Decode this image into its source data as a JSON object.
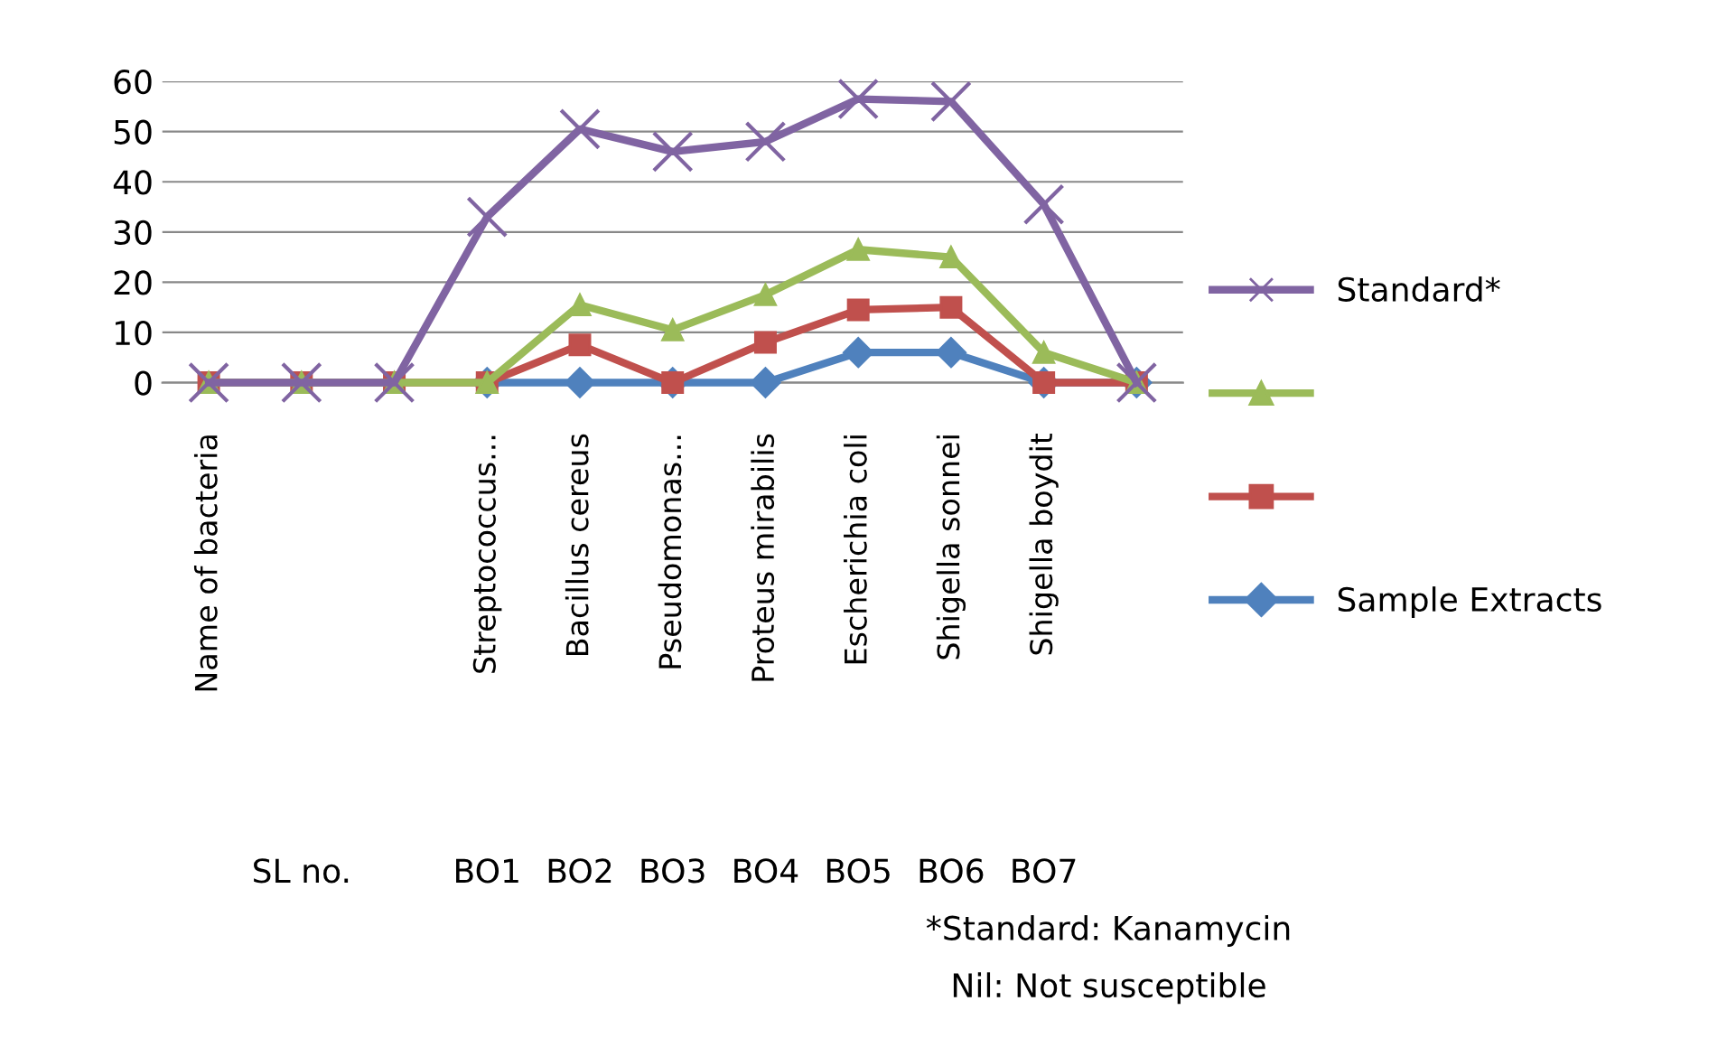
{
  "chart_data": {
    "type": "line",
    "categories": [
      "Name of bacteria",
      null,
      null,
      "Streptococcus...",
      "Bacillus cereus",
      "Pseudomonas...",
      "Proteus mirabilis",
      "Escherichia coli",
      "Shigella sonnei",
      "Shigella boydit",
      null
    ],
    "series": [
      {
        "name": "Standard*",
        "color": "#8064a2",
        "marker": "cross",
        "values": [
          0,
          0,
          0,
          33,
          50.5,
          46,
          48,
          56.5,
          56,
          35.5,
          0
        ]
      },
      {
        "color": "#9bbb59",
        "marker": "triangle",
        "values": [
          0,
          0,
          0,
          0,
          15.5,
          10.5,
          17.5,
          26.5,
          25,
          6,
          0
        ]
      },
      {
        "color": "#c0504d",
        "marker": "square",
        "values": [
          0,
          0,
          0,
          0,
          7.5,
          0,
          8,
          14.5,
          15,
          0,
          0
        ]
      },
      {
        "name": "Sample Extracts",
        "color": "#4f81bd",
        "marker": "diamond",
        "values": [
          null,
          null,
          null,
          0,
          0,
          0,
          0,
          6,
          6,
          0,
          0
        ]
      }
    ],
    "ylim": [
      0,
      60
    ],
    "yticks": [
      0,
      10,
      20,
      30,
      40,
      50,
      60
    ],
    "grid": "y",
    "legend": "right",
    "annotations": [
      "SL no.",
      "BO1",
      "BO2",
      "BO3",
      "BO4",
      "BO5",
      "BO6",
      "BO7",
      "*Standard: Kanamycin",
      "Nil: Not susceptible"
    ]
  }
}
